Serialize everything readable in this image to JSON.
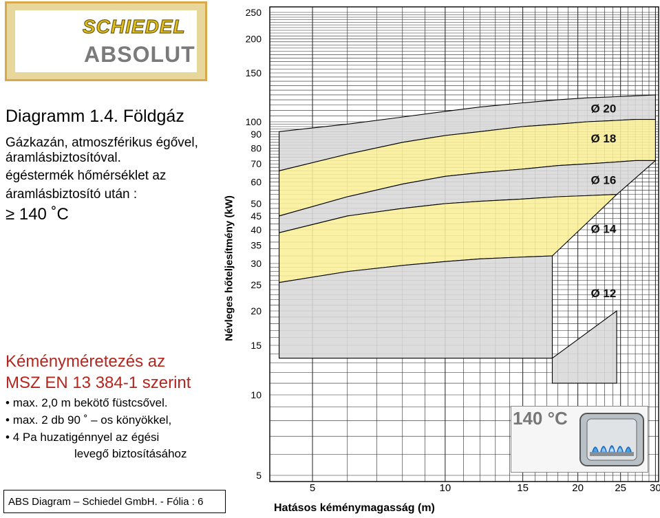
{
  "logo": {
    "brand": "SCHIEDEL",
    "product": "ABSOLUT"
  },
  "left": {
    "title": "Diagramm 1.4. Földgáz",
    "desc1": "Gázkazán, atmoszférikus égővel,",
    "desc2": "áramlásbiztosítóval.",
    "desc3": "égéstermék hőmérséklet az",
    "desc4": "áramlásbiztosító után :",
    "temp": "≥ 140 ˚C",
    "heading1": "Kéményméretezés az",
    "heading2": "MSZ EN 13 384-1 szerint",
    "b1": "max. 2,0 m bekötő füstcsővel.",
    "b2": "max. 2 db 90 ˚ – os könyökkel,",
    "b3": "4 Pa huzatigénnyel az égési",
    "b3b": "levegő biztosításához"
  },
  "footer": "ABS Diagram – Schiedel GmbH. - Fólia : 6",
  "badge": {
    "text": "140 °C",
    "icon": "flame-burner-icon"
  },
  "chart_data": {
    "type": "area",
    "xlabel": "Hatásos kéménymagasság (m)",
    "ylabel": "Névleges hőteljesítmény (kW)",
    "x_ticks": [
      5,
      10,
      15,
      20,
      25,
      30
    ],
    "y_ticks": [
      5,
      10,
      15,
      20,
      25,
      30,
      35,
      40,
      45,
      50,
      60,
      70,
      80,
      90,
      100,
      150,
      200,
      250
    ],
    "xlim": [
      4,
      30.5
    ],
    "ylim": [
      5,
      250
    ],
    "grid": true,
    "bands": [
      {
        "name": "Ø 20",
        "color": "#d8d8d8",
        "upper": [
          [
            4.2,
            92
          ],
          [
            6,
            98
          ],
          [
            8,
            104
          ],
          [
            10,
            109
          ],
          [
            12,
            113
          ],
          [
            15,
            117
          ],
          [
            18,
            120
          ],
          [
            21,
            122
          ],
          [
            24,
            123
          ],
          [
            27,
            124
          ],
          [
            30,
            125
          ]
        ],
        "lower": [
          [
            4.2,
            66
          ],
          [
            6,
            76
          ],
          [
            8,
            84
          ],
          [
            10,
            89
          ],
          [
            12,
            92
          ],
          [
            15,
            96
          ],
          [
            18,
            98
          ],
          [
            21,
            100
          ],
          [
            24,
            101
          ],
          [
            27,
            102
          ],
          [
            30,
            102
          ]
        ]
      },
      {
        "name": "Ø 18",
        "color": "#fbef98",
        "upper": [
          [
            4.2,
            66
          ],
          [
            6,
            76
          ],
          [
            8,
            84
          ],
          [
            10,
            89
          ],
          [
            12,
            92
          ],
          [
            15,
            96
          ],
          [
            18,
            98
          ],
          [
            21,
            100
          ],
          [
            24,
            101
          ],
          [
            27,
            102
          ],
          [
            30,
            102
          ]
        ],
        "lower": [
          [
            4.2,
            45
          ],
          [
            6,
            53
          ],
          [
            8,
            59
          ],
          [
            10,
            63
          ],
          [
            12,
            65
          ],
          [
            15,
            67
          ],
          [
            18,
            69
          ],
          [
            21,
            70
          ],
          [
            24,
            71
          ],
          [
            27,
            72
          ],
          [
            30,
            72
          ]
        ]
      },
      {
        "name": "Ø 16",
        "color": "#d8d8d8",
        "upper": [
          [
            4.2,
            45
          ],
          [
            6,
            53
          ],
          [
            8,
            59
          ],
          [
            10,
            63
          ],
          [
            12,
            65
          ],
          [
            15,
            67
          ],
          [
            18,
            69
          ],
          [
            21,
            70
          ],
          [
            24,
            71
          ],
          [
            27,
            72
          ],
          [
            30,
            72
          ]
        ],
        "lower": [
          [
            4.2,
            39
          ],
          [
            6,
            45
          ],
          [
            8,
            48
          ],
          [
            10,
            50
          ],
          [
            12,
            51
          ],
          [
            15,
            52
          ],
          [
            18,
            53
          ],
          [
            21,
            53.5
          ],
          [
            24,
            54
          ],
          [
            24.5,
            54
          ]
        ]
      },
      {
        "name": "Ø 14",
        "color": "#fbef98",
        "upper": [
          [
            4.2,
            39
          ],
          [
            6,
            45
          ],
          [
            8,
            48
          ],
          [
            10,
            50
          ],
          [
            12,
            51
          ],
          [
            15,
            52
          ],
          [
            18,
            53
          ],
          [
            21,
            53.5
          ],
          [
            24,
            54
          ],
          [
            24.5,
            54
          ]
        ],
        "lower": [
          [
            4.2,
            25.5
          ],
          [
            6,
            28
          ],
          [
            8,
            29.5
          ],
          [
            10,
            30.5
          ],
          [
            12,
            31.2
          ],
          [
            15,
            31.7
          ],
          [
            17.5,
            32
          ]
        ]
      },
      {
        "name": "Ø 12",
        "color": "#d8d8d8",
        "upper": [
          [
            4.2,
            25.5
          ],
          [
            6,
            28
          ],
          [
            8,
            29.5
          ],
          [
            10,
            30.5
          ],
          [
            12,
            31.2
          ],
          [
            15,
            31.7
          ],
          [
            17.5,
            32
          ],
          [
            17.5,
            11
          ],
          [
            24.5,
            11
          ],
          [
            24.5,
            20
          ]
        ],
        "lower": [
          [
            4.2,
            13.5
          ],
          [
            17.5,
            13.5
          ]
        ]
      }
    ],
    "band_labels": [
      {
        "text": "Ø 20",
        "x": 21.4,
        "y": 108
      },
      {
        "text": "Ø 18",
        "x": 21.4,
        "y": 84
      },
      {
        "text": "Ø 16",
        "x": 21.4,
        "y": 59
      },
      {
        "text": "Ø 14",
        "x": 21.4,
        "y": 39
      },
      {
        "text": "Ø 12",
        "x": 21.4,
        "y": 22.5
      }
    ]
  }
}
